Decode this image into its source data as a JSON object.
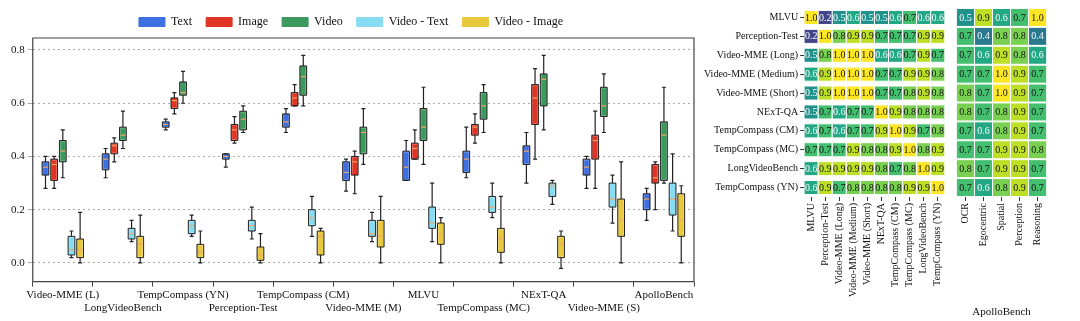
{
  "chart_data": [
    {
      "type": "box",
      "categories": [
        "Video-MME (L)",
        "LongVideoBench",
        "TempCompass (YN)",
        "Perception-Test",
        "TempCompass (CM)",
        "Video-MME (M)",
        "MLVU",
        "TempCompass (MC)",
        "NExT-QA",
        "Video-MME (S)",
        "ApolloBench"
      ],
      "ylim": [
        -0.07,
        0.845
      ],
      "yticks": [
        {
          "value": 0,
          "label": "0.0"
        },
        {
          "value": 0.2,
          "label": "0.2"
        },
        {
          "value": 0.4,
          "label": "0.4"
        },
        {
          "value": 0.6,
          "label": "0.6"
        },
        {
          "value": 0.8,
          "label": "0.8"
        }
      ],
      "grid": "y",
      "legend": "top",
      "series": [
        {
          "name": "Text",
          "color": "#3d6fe0",
          "boxes": [
            {
              "low": 0.28,
              "q1": 0.33,
              "median": 0.36,
              "q3": 0.38,
              "high": 0.4
            },
            {
              "low": 0.32,
              "q1": 0.35,
              "median": 0.39,
              "q3": 0.41,
              "high": 0.43
            },
            {
              "low": 0.5,
              "q1": 0.51,
              "median": 0.52,
              "q3": 0.53,
              "high": 0.54
            },
            {
              "low": 0.36,
              "q1": 0.39,
              "median": 0.4,
              "q3": 0.41,
              "high": 0.41
            },
            {
              "low": 0.49,
              "q1": 0.51,
              "median": 0.53,
              "q3": 0.56,
              "high": 0.58
            },
            {
              "low": 0.27,
              "q1": 0.31,
              "median": 0.34,
              "q3": 0.38,
              "high": 0.39
            },
            {
              "low": 0.31,
              "q1": 0.31,
              "median": 0.36,
              "q3": 0.42,
              "high": 0.46
            },
            {
              "low": 0.32,
              "q1": 0.34,
              "median": 0.39,
              "q3": 0.42,
              "high": 0.51
            },
            {
              "low": 0.3,
              "q1": 0.37,
              "median": 0.42,
              "q3": 0.44,
              "high": 0.49
            },
            {
              "low": 0.28,
              "q1": 0.33,
              "median": 0.36,
              "q3": 0.39,
              "high": 0.4
            },
            {
              "low": 0.16,
              "q1": 0.2,
              "median": 0.24,
              "q3": 0.26,
              "high": 0.28
            }
          ]
        },
        {
          "name": "Image",
          "color": "#e03424",
          "boxes": [
            {
              "low": 0.28,
              "q1": 0.31,
              "median": 0.37,
              "q3": 0.39,
              "high": 0.4
            },
            {
              "low": 0.38,
              "q1": 0.41,
              "median": 0.44,
              "q3": 0.45,
              "high": 0.47
            },
            {
              "low": 0.56,
              "q1": 0.58,
              "median": 0.61,
              "q3": 0.62,
              "high": 0.64
            },
            {
              "low": 0.45,
              "q1": 0.46,
              "median": 0.5,
              "q3": 0.52,
              "high": 0.55
            },
            {
              "low": 0.59,
              "q1": 0.59,
              "median": 0.62,
              "q3": 0.64,
              "high": 0.67
            },
            {
              "low": 0.26,
              "q1": 0.33,
              "median": 0.38,
              "q3": 0.4,
              "high": 0.42
            },
            {
              "low": 0.39,
              "q1": 0.39,
              "median": 0.43,
              "q3": 0.45,
              "high": 0.5
            },
            {
              "low": 0.45,
              "q1": 0.48,
              "median": 0.51,
              "q3": 0.52,
              "high": 0.56
            },
            {
              "low": 0.39,
              "q1": 0.52,
              "median": 0.62,
              "q3": 0.67,
              "high": 0.73
            },
            {
              "low": 0.28,
              "q1": 0.39,
              "median": 0.46,
              "q3": 0.48,
              "high": 0.57
            },
            {
              "low": 0.2,
              "q1": 0.3,
              "median": 0.32,
              "q3": 0.37,
              "high": 0.38
            }
          ]
        },
        {
          "name": "Video",
          "color": "#3c9a5e",
          "boxes": [
            {
              "low": 0.32,
              "q1": 0.38,
              "median": 0.42,
              "q3": 0.46,
              "high": 0.5
            },
            {
              "low": 0.43,
              "q1": 0.46,
              "median": 0.48,
              "q3": 0.51,
              "high": 0.57
            },
            {
              "low": 0.6,
              "q1": 0.63,
              "median": 0.64,
              "q3": 0.68,
              "high": 0.72
            },
            {
              "low": 0.49,
              "q1": 0.5,
              "median": 0.54,
              "q3": 0.57,
              "high": 0.59
            },
            {
              "low": 0.59,
              "q1": 0.63,
              "median": 0.7,
              "q3": 0.74,
              "high": 0.78
            },
            {
              "low": 0.37,
              "q1": 0.41,
              "median": 0.49,
              "q3": 0.51,
              "high": 0.58
            },
            {
              "low": 0.37,
              "q1": 0.46,
              "median": 0.51,
              "q3": 0.58,
              "high": 0.66
            },
            {
              "low": 0.49,
              "q1": 0.54,
              "median": 0.59,
              "q3": 0.64,
              "high": 0.67
            },
            {
              "low": 0.5,
              "q1": 0.59,
              "median": 0.69,
              "q3": 0.71,
              "high": 0.78
            },
            {
              "low": 0.49,
              "q1": 0.55,
              "median": 0.59,
              "q3": 0.66,
              "high": 0.71
            },
            {
              "low": 0.3,
              "q1": 0.31,
              "median": 0.48,
              "q3": 0.53,
              "high": 0.66
            }
          ]
        },
        {
          "name": "Video - Text",
          "color": "#86dcf2",
          "boxes": [
            {
              "low": 0.02,
              "q1": 0.03,
              "median": 0.05,
              "q3": 0.1,
              "high": 0.12
            },
            {
              "low": 0.08,
              "q1": 0.09,
              "median": 0.11,
              "q3": 0.13,
              "high": 0.16
            },
            {
              "low": 0.1,
              "q1": 0.11,
              "median": 0.14,
              "q3": 0.16,
              "high": 0.18
            },
            {
              "low": 0.09,
              "q1": 0.12,
              "median": 0.14,
              "q3": 0.16,
              "high": 0.21
            },
            {
              "low": 0.1,
              "q1": 0.14,
              "median": 0.17,
              "q3": 0.2,
              "high": 0.25
            },
            {
              "low": 0.08,
              "q1": 0.1,
              "median": 0.11,
              "q3": 0.16,
              "high": 0.19
            },
            {
              "low": 0.08,
              "q1": 0.13,
              "median": 0.15,
              "q3": 0.21,
              "high": 0.3
            },
            {
              "low": 0.17,
              "q1": 0.19,
              "median": 0.21,
              "q3": 0.25,
              "high": 0.3
            },
            {
              "low": 0.22,
              "q1": 0.25,
              "median": 0.29,
              "q3": 0.3,
              "high": 0.31
            },
            {
              "low": 0.15,
              "q1": 0.21,
              "median": 0.24,
              "q3": 0.3,
              "high": 0.33
            },
            {
              "low": 0.12,
              "q1": 0.18,
              "median": 0.24,
              "q3": 0.3,
              "high": 0.41
            }
          ]
        },
        {
          "name": "Video - Image",
          "color": "#e8c83c",
          "boxes": [
            {
              "low": 0,
              "q1": 0.02,
              "median": 0.05,
              "q3": 0.09,
              "high": 0.19
            },
            {
              "low": 0,
              "q1": 0.02,
              "median": 0.07,
              "q3": 0.1,
              "high": 0.18
            },
            {
              "low": 0,
              "q1": 0.02,
              "median": 0.04,
              "q3": 0.07,
              "high": 0.12
            },
            {
              "low": 0,
              "q1": 0.01,
              "median": 0.03,
              "q3": 0.06,
              "high": 0.11
            },
            {
              "low": 0,
              "q1": 0.03,
              "median": 0.1,
              "q3": 0.12,
              "high": 0.13
            },
            {
              "low": 0,
              "q1": 0.06,
              "median": 0.1,
              "q3": 0.16,
              "high": 0.25
            },
            {
              "low": 0,
              "q1": 0.07,
              "median": 0.11,
              "q3": 0.15,
              "high": 0.17
            },
            {
              "low": 0,
              "q1": 0.04,
              "median": 0.09,
              "q3": 0.13,
              "high": 0.25
            },
            {
              "low": -0.02,
              "q1": 0.02,
              "median": 0.07,
              "q3": 0.1,
              "high": 0.12
            },
            {
              "low": 0,
              "q1": 0.1,
              "median": 0.16,
              "q3": 0.24,
              "high": 0.38
            },
            {
              "low": 0,
              "q1": 0.1,
              "median": 0.16,
              "q3": 0.26,
              "high": 0.29
            }
          ]
        }
      ]
    },
    {
      "type": "heatmap",
      "categories": [
        "MLVU",
        "Perception-Test",
        "Video-MME (Long)",
        "Video-MME (Medium)",
        "Video-MME (Short)",
        "NExT-QA",
        "TempCompass (CM)",
        "TempCompass (MC)",
        "LongVideoBench",
        "TempCompass (YN)"
      ],
      "y_categories": [
        "MLVU",
        "Perception-Test",
        "Video-MME (Long)",
        "Video-MME (Medium)",
        "Video-MME (Short)",
        "NExT-QA",
        "TempCompass (CM)",
        "TempCompass (MC)",
        "LongVideoBench",
        "TempCompass (YN)"
      ],
      "cells": [
        [
          1.0,
          0.2,
          0.5,
          0.6,
          0.5,
          0.5,
          0.6,
          0.7,
          0.6,
          0.6
        ],
        [
          0.2,
          1.0,
          0.8,
          0.9,
          0.9,
          0.7,
          0.7,
          0.7,
          0.9,
          0.9
        ],
        [
          0.5,
          0.8,
          1.0,
          1.0,
          1.0,
          0.6,
          0.6,
          0.7,
          0.9,
          0.7
        ],
        [
          0.6,
          0.9,
          1.0,
          1.0,
          1.0,
          0.7,
          0.7,
          0.9,
          0.9,
          0.8
        ],
        [
          0.5,
          0.9,
          1.0,
          1.0,
          1.0,
          0.7,
          0.7,
          0.8,
          0.9,
          0.8
        ],
        [
          0.5,
          0.7,
          0.6,
          0.7,
          0.7,
          1.0,
          0.9,
          0.8,
          0.8,
          0.8
        ],
        [
          0.6,
          0.7,
          0.6,
          0.7,
          0.7,
          0.9,
          1.0,
          0.9,
          0.7,
          0.8
        ],
        [
          0.7,
          0.7,
          0.7,
          0.9,
          0.8,
          0.8,
          0.9,
          1.0,
          0.8,
          0.9
        ],
        [
          0.6,
          0.9,
          0.9,
          0.9,
          0.9,
          0.8,
          0.7,
          0.8,
          1.0,
          0.9
        ],
        [
          0.6,
          0.9,
          0.7,
          0.8,
          0.8,
          0.8,
          0.8,
          0.9,
          0.9,
          1.0
        ]
      ],
      "cell_labels": [
        [
          "1.0",
          "0.2",
          "0.5",
          "0.6",
          "0.5",
          "0.5",
          "0.6",
          "0.7",
          "0.6",
          "0.6"
        ],
        [
          "0.2",
          "1.0",
          "0.8",
          "0.9",
          "0.9",
          "0.7",
          "0.7",
          "0.7",
          "0.9",
          "0.9"
        ],
        [
          "0.5",
          "0.8",
          "1.0",
          "1.0",
          "1.0",
          "0.6",
          "0.6",
          "0.7",
          "0.9",
          "0.7"
        ],
        [
          "0.6",
          "0.9",
          "1.0",
          "1.0",
          "1.0",
          "0.7",
          "0.7",
          "0.9",
          "0.9",
          "0.8"
        ],
        [
          "0.5",
          "0.9",
          "1.0",
          "1.0",
          "1.0",
          "0.7",
          "0.7",
          "0.8",
          "0.9",
          "0.8"
        ],
        [
          "0.5",
          "0.7",
          "0.6",
          "0.7",
          "0.7",
          "1.0",
          "0.9",
          "0.8",
          "0.8",
          "0.8"
        ],
        [
          "0.6",
          "0.7",
          "0.6",
          "0.7",
          "0.7",
          "0.9",
          "1.0",
          "0.9",
          "0.7",
          "0.8"
        ],
        [
          "0.7",
          "0.7",
          "0.7",
          "0.9",
          "0.8",
          "0.8",
          "0.9",
          "1.0",
          "0.8",
          "0.9"
        ],
        [
          "0.6",
          "0.9",
          "0.9",
          "0.9",
          "0.9",
          "0.8",
          "0.7",
          "0.8",
          "1.0",
          "0.9"
        ],
        [
          "0.6",
          "0.9",
          "0.7",
          "0.8",
          "0.8",
          "0.8",
          "0.8",
          "0.9",
          "0.9",
          "1.0"
        ]
      ]
    },
    {
      "type": "heatmap",
      "xlabel": "ApolloBench",
      "tick_labels": "x",
      "categories": [
        "OCR",
        "Egocentric",
        "Spatial",
        "Perception",
        "Reasoning"
      ],
      "y_categories": [
        null,
        null,
        null,
        null,
        null,
        null,
        null,
        null,
        null,
        null
      ],
      "cells": [
        [
          0.5,
          0.9,
          0.6,
          0.7,
          1.0
        ],
        [
          0.7,
          0.4,
          0.8,
          0.8,
          0.4
        ],
        [
          0.7,
          0.6,
          0.9,
          0.8,
          0.6
        ],
        [
          0.7,
          0.7,
          1.0,
          0.9,
          0.7
        ],
        [
          0.8,
          0.7,
          1.0,
          0.9,
          0.7
        ],
        [
          0.8,
          0.7,
          0.8,
          0.9,
          0.7
        ],
        [
          0.7,
          0.6,
          0.8,
          0.9,
          0.7
        ],
        [
          0.7,
          0.7,
          0.9,
          0.9,
          0.8
        ],
        [
          0.8,
          0.7,
          0.9,
          0.9,
          0.7
        ],
        [
          0.7,
          0.6,
          0.8,
          0.9,
          0.7
        ]
      ],
      "cell_labels": [
        [
          "0.5",
          "0.9",
          "0.6",
          "0.7",
          "1.0"
        ],
        [
          "0.7",
          "0.4",
          "0.8",
          "0.8",
          "0.4"
        ],
        [
          "0.7",
          "0.6",
          "0.9",
          "0.8",
          "0.6"
        ],
        [
          "0.7",
          "0.7",
          "1.0",
          "0.9",
          "0.7"
        ],
        [
          "0.8",
          "0.7",
          "1.0",
          "0.9",
          "0.7"
        ],
        [
          "0.8",
          "0.7",
          "0.8",
          "0.9",
          "0.7"
        ],
        [
          "0.7",
          "0.6",
          "0.8",
          "0.9",
          "0.7"
        ],
        [
          "0.7",
          "0.7",
          "0.9",
          "0.9",
          "0.8"
        ],
        [
          "0.8",
          "0.7",
          "0.9",
          "0.9",
          "0.7"
        ],
        [
          "0.7",
          "0.6",
          "0.8",
          "0.9",
          "0.7"
        ]
      ]
    }
  ]
}
